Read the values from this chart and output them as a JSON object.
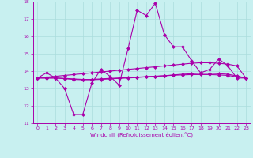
{
  "xlabel": "Windchill (Refroidissement éolien,°C)",
  "ylabel": "",
  "bg_color": "#c8f0f0",
  "line_color": "#aa00aa",
  "grid_color": "#aadddd",
  "xlim": [
    -0.5,
    23.5
  ],
  "ylim": [
    11,
    18
  ],
  "xticks": [
    0,
    1,
    2,
    3,
    4,
    5,
    6,
    7,
    8,
    9,
    10,
    11,
    12,
    13,
    14,
    15,
    16,
    17,
    18,
    19,
    20,
    21,
    22,
    23
  ],
  "yticks": [
    11,
    12,
    13,
    14,
    15,
    16,
    17,
    18
  ],
  "line1": [
    13.6,
    13.9,
    13.6,
    13.0,
    11.5,
    11.5,
    13.3,
    14.1,
    13.7,
    13.2,
    15.3,
    17.5,
    17.2,
    17.9,
    16.1,
    15.4,
    15.4,
    14.6,
    13.9,
    14.1,
    14.7,
    14.3,
    13.6,
    13.6
  ],
  "line2": [
    13.6,
    13.65,
    13.7,
    13.75,
    13.8,
    13.85,
    13.9,
    13.95,
    14.0,
    14.05,
    14.1,
    14.15,
    14.2,
    14.25,
    14.3,
    14.35,
    14.4,
    14.45,
    14.48,
    14.48,
    14.45,
    14.4,
    14.3,
    13.6
  ],
  "line3": [
    13.6,
    13.6,
    13.6,
    13.58,
    13.55,
    13.52,
    13.52,
    13.55,
    13.58,
    13.6,
    13.63,
    13.65,
    13.68,
    13.7,
    13.73,
    13.78,
    13.82,
    13.85,
    13.87,
    13.87,
    13.85,
    13.82,
    13.72,
    13.6
  ],
  "line4": [
    13.6,
    13.6,
    13.6,
    13.56,
    13.52,
    13.5,
    13.5,
    13.52,
    13.55,
    13.58,
    13.6,
    13.63,
    13.67,
    13.7,
    13.73,
    13.76,
    13.78,
    13.8,
    13.8,
    13.8,
    13.78,
    13.75,
    13.67,
    13.6
  ]
}
